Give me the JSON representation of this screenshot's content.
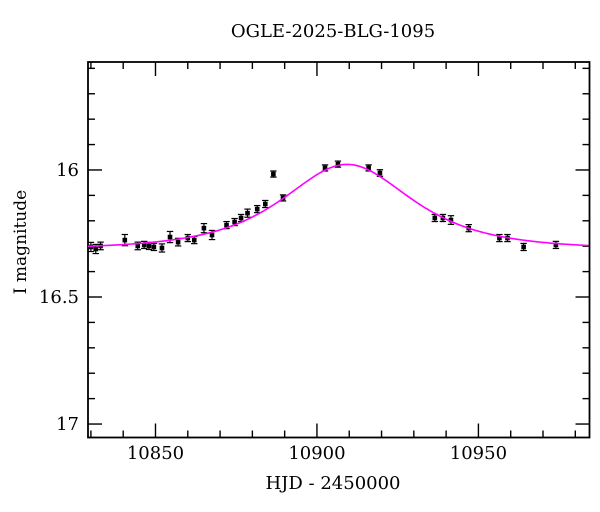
{
  "page": {
    "background": "#ffffff"
  },
  "chart_data": {
    "type": "scatter",
    "title": "OGLE-2025-BLG-1095",
    "xlabel": "HJD - 2450000",
    "ylabel": "I magnitude",
    "xlim": [
      10829.1,
      10984.4
    ],
    "ylim": [
      17.053,
      15.575
    ],
    "y_axis_inverted": true,
    "grid": false,
    "legend": "none",
    "x_major_ticks": [
      10850,
      10900,
      10950
    ],
    "x_major_tick_labels": [
      "10850",
      "10900",
      "10950"
    ],
    "x_minor_tick_step": 10,
    "y_major_ticks": [
      16,
      16.5,
      17
    ],
    "y_major_tick_labels": [
      "16",
      "16.5",
      "17"
    ],
    "y_minor_tick_step": 0.1,
    "axis_color": "#000000",
    "point_color": "#000000",
    "model_color": "#ff00ff",
    "points": [
      [
        10830.0,
        16.303,
        0.018
      ],
      [
        10831.5,
        16.311,
        0.018
      ],
      [
        10833.0,
        16.299,
        0.015
      ],
      [
        10840.5,
        16.276,
        0.022
      ],
      [
        10844.5,
        16.299,
        0.015
      ],
      [
        10846.5,
        16.295,
        0.014
      ],
      [
        10848.0,
        16.299,
        0.014
      ],
      [
        10849.5,
        16.303,
        0.014
      ],
      [
        10852.0,
        16.307,
        0.016
      ],
      [
        10854.5,
        16.264,
        0.022
      ],
      [
        10857.0,
        16.284,
        0.015
      ],
      [
        10860.0,
        16.268,
        0.014
      ],
      [
        10862.0,
        16.276,
        0.014
      ],
      [
        10865.0,
        16.229,
        0.018
      ],
      [
        10867.5,
        16.256,
        0.018
      ],
      [
        10872.0,
        16.217,
        0.014
      ],
      [
        10874.5,
        16.205,
        0.014
      ],
      [
        10876.5,
        16.189,
        0.014
      ],
      [
        10878.5,
        16.17,
        0.016
      ],
      [
        10881.5,
        16.154,
        0.014
      ],
      [
        10884.0,
        16.134,
        0.014
      ],
      [
        10886.5,
        16.016,
        0.012
      ],
      [
        10889.5,
        16.11,
        0.012
      ],
      [
        10902.5,
        15.992,
        0.012
      ],
      [
        10906.5,
        15.977,
        0.012
      ],
      [
        10916.0,
        15.992,
        0.012
      ],
      [
        10919.5,
        16.012,
        0.013
      ],
      [
        10936.5,
        16.189,
        0.014
      ],
      [
        10939.0,
        16.189,
        0.014
      ],
      [
        10941.5,
        16.197,
        0.017
      ],
      [
        10947.0,
        16.229,
        0.014
      ],
      [
        10956.5,
        16.268,
        0.014
      ],
      [
        10959.0,
        16.268,
        0.014
      ],
      [
        10964.0,
        16.303,
        0.014
      ],
      [
        10974.0,
        16.295,
        0.014
      ]
    ],
    "model_curve": {
      "shape": "paczynski",
      "t0": 10909.3,
      "tE": 24.5,
      "u0": 0.975,
      "baseline_mag": 16.312,
      "peak_mag": 15.979
    }
  }
}
